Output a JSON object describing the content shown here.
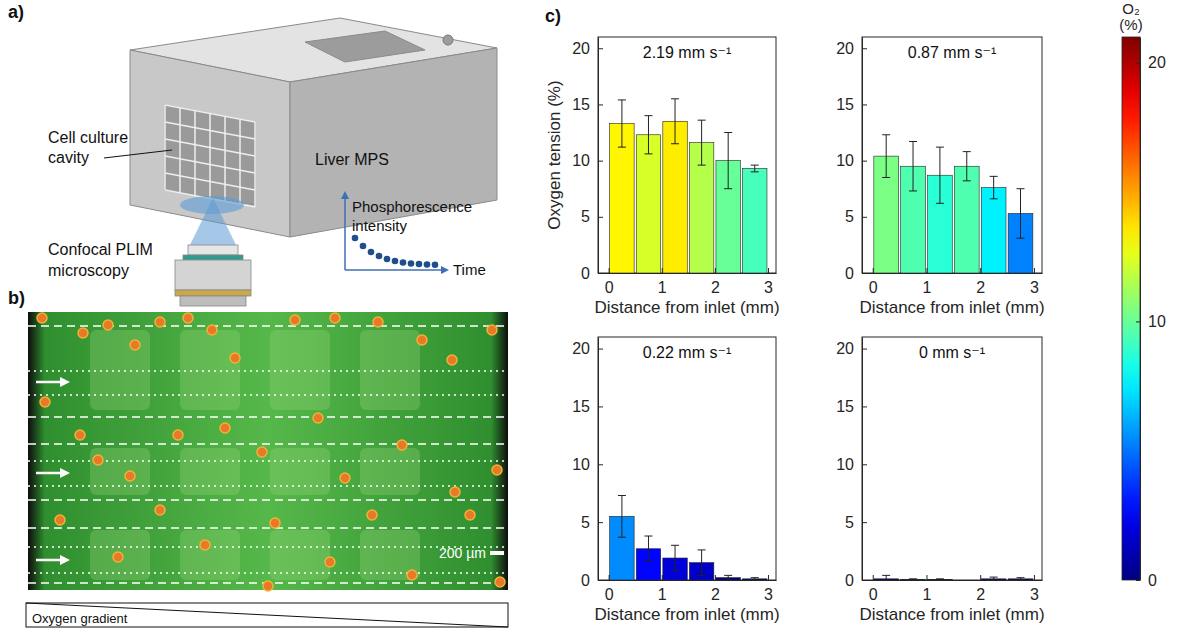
{
  "figure": {
    "panel_a": {
      "label": "a)",
      "callouts": [
        "Cell culture cavity",
        "Liver MPS",
        "Confocal PLIM microscopy"
      ],
      "inset": {
        "y_label": "Phosphorescence intensity",
        "x_label": "Time"
      }
    },
    "panel_b": {
      "label": "b)",
      "scale_bar": "200 µm",
      "gradient_label": "Oxygen gradient"
    },
    "panel_c": {
      "label": "c)"
    }
  },
  "color_bar": {
    "label": "O₂ (%)",
    "lim": [
      0,
      21
    ],
    "ticks": [
      0,
      10,
      20
    ]
  },
  "chart_data": [
    {
      "type": "bar",
      "title": "2.19 mm s⁻¹",
      "x_label": "Distance from inlet (mm)",
      "y_label": "Oxygen tension (%)",
      "x": [
        0.25,
        0.75,
        1.25,
        1.75,
        2.25,
        2.75
      ],
      "values": [
        13.3,
        12.3,
        13.5,
        11.6,
        10.0,
        9.3
      ],
      "errors": [
        2.1,
        1.7,
        2.0,
        2.0,
        2.5,
        0.3
      ],
      "xlim": [
        -0.2,
        3.15
      ],
      "xticks": [
        0,
        1,
        2,
        3
      ],
      "ylim": [
        0,
        21
      ],
      "yticks": [
        0,
        5,
        10,
        15,
        20
      ]
    },
    {
      "type": "bar",
      "title": "0.87 mm s⁻¹",
      "x_label": "Distance from inlet (mm)",
      "x": [
        0.25,
        0.75,
        1.25,
        1.75,
        2.25,
        2.75
      ],
      "values": [
        10.4,
        9.5,
        8.7,
        9.5,
        7.6,
        5.3
      ],
      "errors": [
        1.9,
        2.2,
        2.5,
        1.3,
        1.0,
        2.2
      ],
      "xlim": [
        -0.2,
        3.15
      ],
      "xticks": [
        0,
        1,
        2,
        3
      ],
      "ylim": [
        0,
        21
      ],
      "yticks": [
        0,
        5,
        10,
        15,
        20
      ]
    },
    {
      "type": "bar",
      "title": "0.22 mm s⁻¹",
      "x_label": "Distance from inlet (mm)",
      "x": [
        0.25,
        0.75,
        1.25,
        1.75,
        2.25,
        2.75
      ],
      "values": [
        5.5,
        2.7,
        1.9,
        1.5,
        0.2,
        0.1
      ],
      "errors": [
        1.8,
        1.1,
        1.1,
        1.1,
        0.2,
        0.1
      ],
      "xlim": [
        -0.2,
        3.15
      ],
      "xticks": [
        0,
        1,
        2,
        3
      ],
      "ylim": [
        0,
        21
      ],
      "yticks": [
        0,
        5,
        10,
        15,
        20
      ]
    },
    {
      "type": "bar",
      "title": "0 mm s⁻¹",
      "x_label": "Distance from inlet (mm)",
      "x": [
        0.25,
        0.75,
        1.25,
        1.75,
        2.25,
        2.75
      ],
      "values": [
        0.1,
        0.05,
        0.05,
        null,
        0.1,
        0.1
      ],
      "errors": [
        0.3,
        0.05,
        0.05,
        null,
        0.15,
        0.1
      ],
      "xlim": [
        -0.2,
        3.15
      ],
      "xticks": [
        0,
        1,
        2,
        3
      ],
      "ylim": [
        0,
        21
      ],
      "yticks": [
        0,
        5,
        10,
        15,
        20
      ]
    }
  ]
}
